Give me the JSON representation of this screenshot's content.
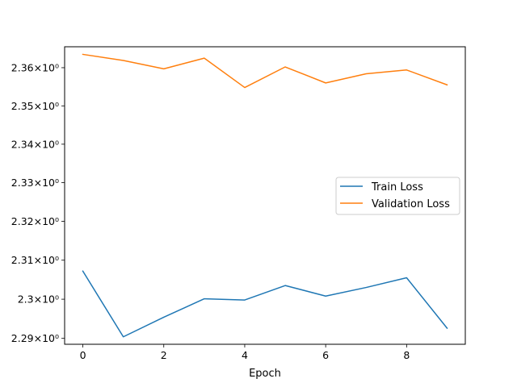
{
  "chart_data": {
    "type": "line",
    "title": "",
    "xlabel": "Epoch",
    "ylabel": "",
    "x": [
      0,
      1,
      2,
      3,
      4,
      5,
      6,
      7,
      8,
      9
    ],
    "xlim": [
      -0.45,
      9.45
    ],
    "ylim": [
      2.2885,
      2.3655
    ],
    "y_scale": "log",
    "grid": false,
    "legend_position": "center-right",
    "x_ticks": [
      0,
      2,
      4,
      6,
      8
    ],
    "y_ticks": [
      {
        "value": 2.29,
        "label": "2.29×10⁰"
      },
      {
        "value": 2.3,
        "label": "2.3×10⁰"
      },
      {
        "value": 2.31,
        "label": "2.31×10⁰"
      },
      {
        "value": 2.32,
        "label": "2.32×10⁰"
      },
      {
        "value": 2.33,
        "label": "2.33×10⁰"
      },
      {
        "value": 2.34,
        "label": "2.34×10⁰"
      },
      {
        "value": 2.35,
        "label": "2.35×10⁰"
      },
      {
        "value": 2.36,
        "label": "2.36×10⁰"
      }
    ],
    "series": [
      {
        "name": "Train Loss",
        "color": "#1f77b4",
        "values": [
          2.3072,
          2.2904,
          2.2954,
          2.3001,
          2.2998,
          2.3035,
          2.3008,
          2.303,
          2.3055,
          2.2926
        ]
      },
      {
        "name": "Validation Loss",
        "color": "#ff7f0e",
        "values": [
          2.3635,
          2.3619,
          2.3597,
          2.3625,
          2.3548,
          2.3602,
          2.356,
          2.3584,
          2.3594,
          2.3555
        ]
      }
    ]
  }
}
